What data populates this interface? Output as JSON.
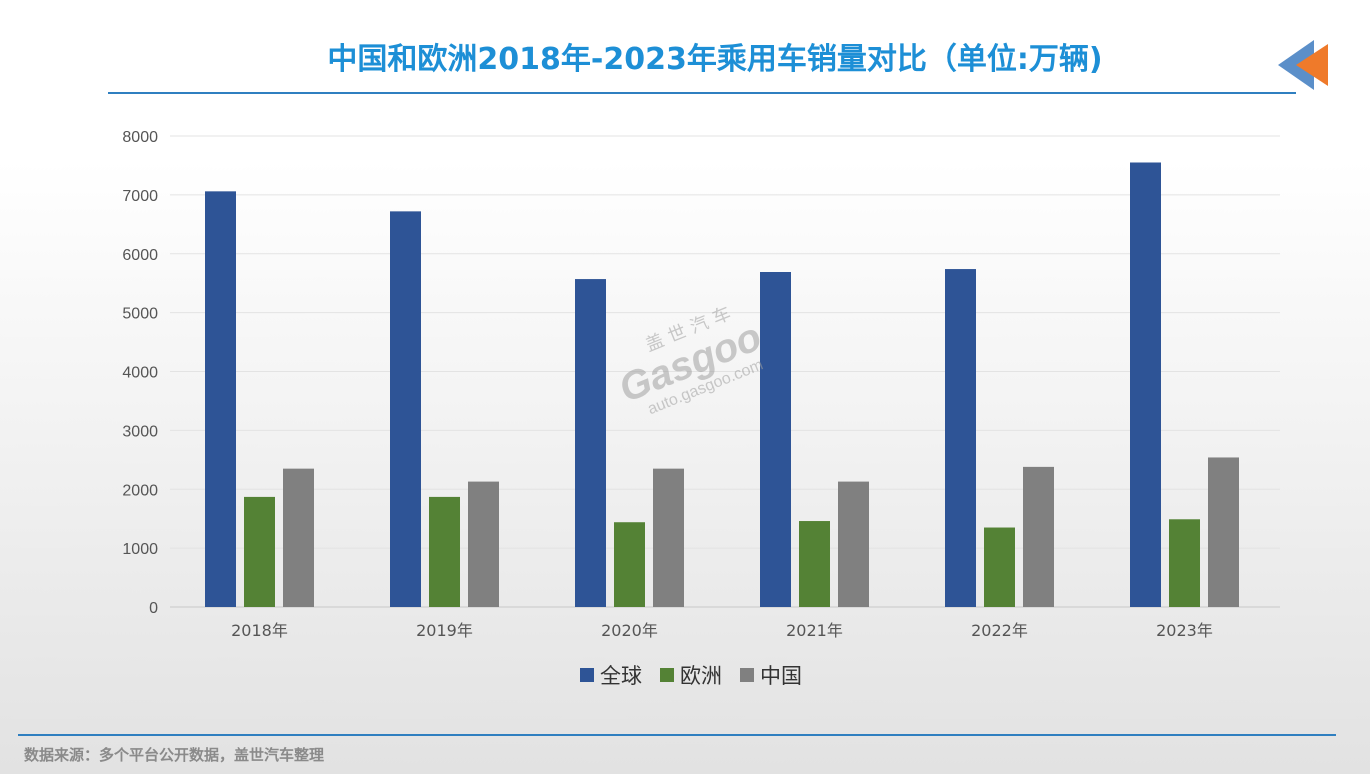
{
  "header": {
    "title": "中国和欧洲2018年-2023年乘用车销量对比（单位:万辆)"
  },
  "watermark": {
    "cn": "盖世汽车",
    "logo": "Gasgoo",
    "url": "auto.gasgoo.com"
  },
  "footer": {
    "source": "数据来源：多个平台公开数据，盖世汽车整理"
  },
  "colors": {
    "title": "#1d8fd6",
    "rule": "#2f7fc0",
    "deco_blue": "#5b8fc9",
    "deco_orange": "#ef7a2a"
  },
  "chart_data": {
    "type": "bar",
    "title": "",
    "xlabel": "",
    "ylabel": "",
    "categories": [
      "2018年",
      "2019年",
      "2020年",
      "2021年",
      "2022年",
      "2023年"
    ],
    "ylim": [
      0,
      8000
    ],
    "yticks": [
      "0",
      "1000",
      "2000",
      "3000",
      "4000",
      "5000",
      "6000",
      "7000",
      "8000"
    ],
    "grid": true,
    "legend": "bottom-center",
    "series": [
      {
        "name": "全球",
        "color": "#2e5496",
        "values": [
          7060,
          6720,
          5570,
          5690,
          5740,
          7550
        ]
      },
      {
        "name": "欧洲",
        "color": "#548235",
        "values": [
          1870,
          1870,
          1440,
          1460,
          1350,
          1490
        ]
      },
      {
        "name": "中国",
        "color": "#808080",
        "values": [
          2350,
          2130,
          2350,
          2130,
          2380,
          2540
        ]
      }
    ]
  }
}
